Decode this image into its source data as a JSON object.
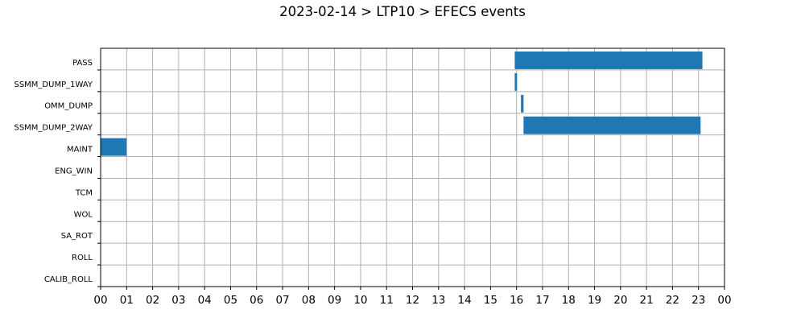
{
  "chart_data": {
    "type": "bar",
    "orientation": "horizontal-gantt",
    "title": "2023-02-14 > LTP10 > EFECS events",
    "xlabel": "",
    "ylabel": "",
    "grid": true,
    "xlim": [
      0,
      24
    ],
    "x_tick_labels": [
      "00",
      "01",
      "02",
      "03",
      "04",
      "05",
      "06",
      "07",
      "08",
      "09",
      "10",
      "11",
      "12",
      "13",
      "14",
      "15",
      "16",
      "17",
      "18",
      "19",
      "20",
      "21",
      "22",
      "23",
      "00"
    ],
    "categories": [
      "PASS",
      "SSMM_DUMP_1WAY",
      "OMM_DUMP",
      "SSMM_DUMP_2WAY",
      "MAINT",
      "ENG_WIN",
      "TCM",
      "WOL",
      "SA_ROT",
      "ROLL",
      "CALIB_ROLL"
    ],
    "bar_color": "#1f77b4",
    "events": [
      {
        "category": "PASS",
        "start": 15.93,
        "end": 23.15
      },
      {
        "category": "SSMM_DUMP_1WAY",
        "start": 15.93,
        "end": 16.02
      },
      {
        "category": "OMM_DUMP",
        "start": 16.17,
        "end": 16.27
      },
      {
        "category": "SSMM_DUMP_2WAY",
        "start": 16.27,
        "end": 23.08
      },
      {
        "category": "MAINT",
        "start": 0.0,
        "end": 1.0
      }
    ]
  }
}
